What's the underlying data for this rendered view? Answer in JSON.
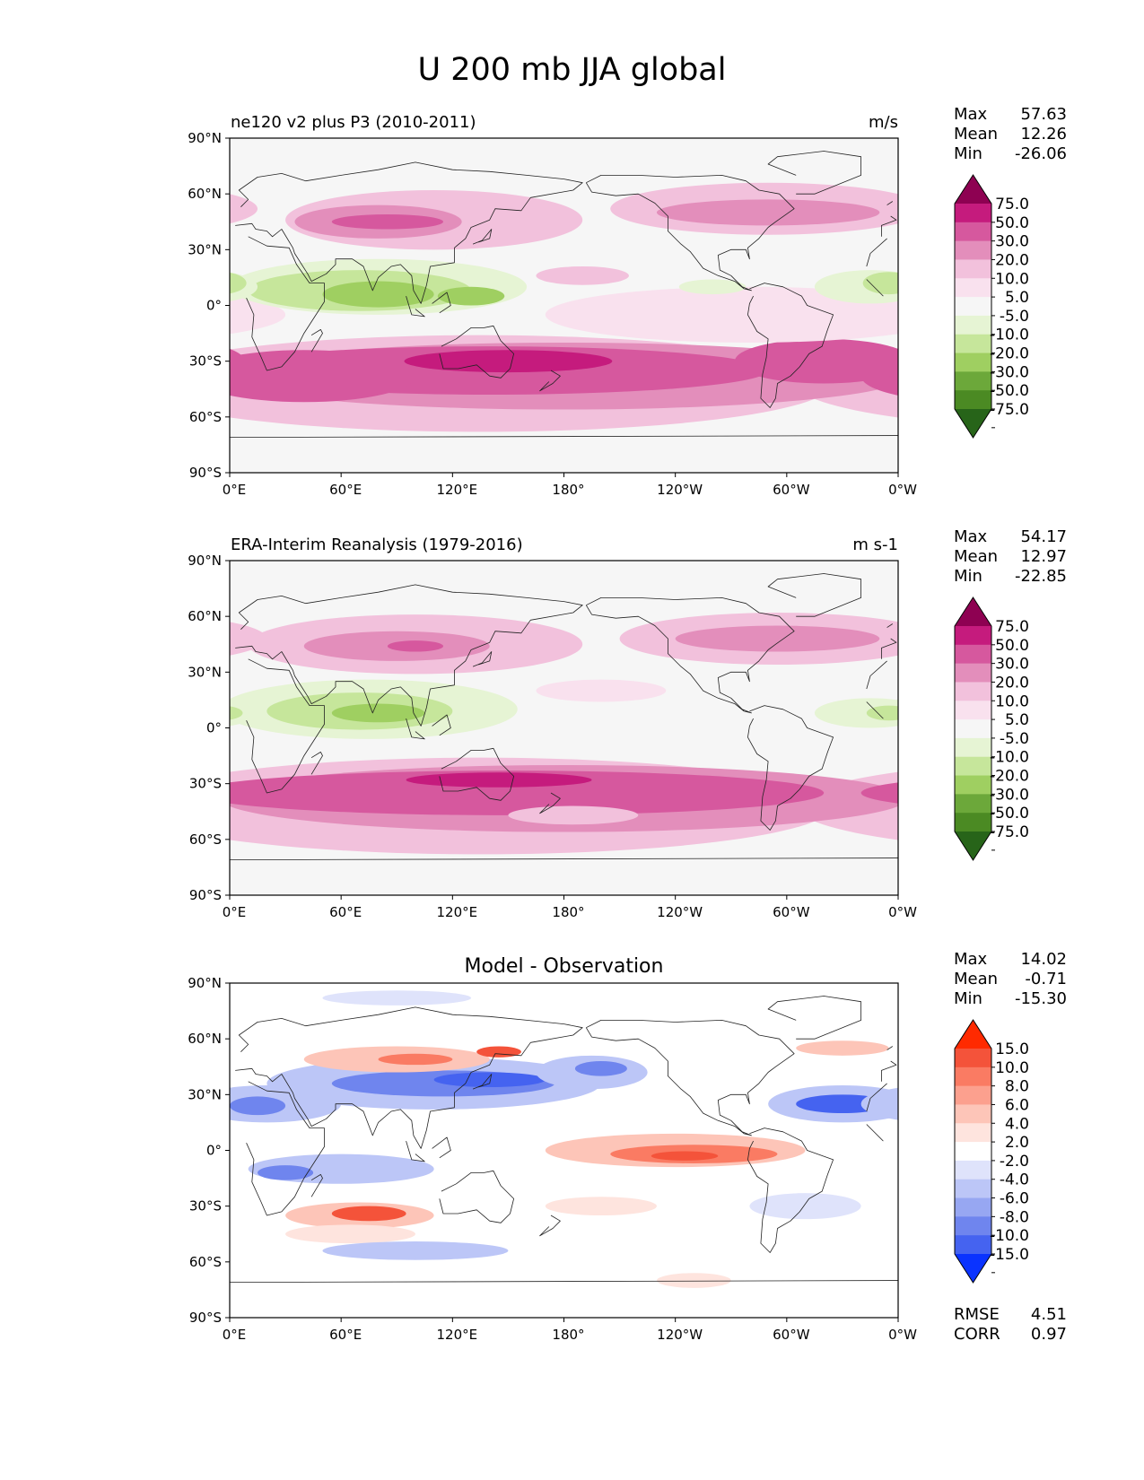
{
  "figure": {
    "title": "U 200 mb JJA global"
  },
  "lat_ticks": [
    "90°N",
    "60°N",
    "30°N",
    "0°",
    "30°S",
    "60°S",
    "90°S"
  ],
  "lon_ticks": [
    "0°E",
    "60°E",
    "120°E",
    "180°",
    "120°W",
    "60°W",
    "0°W"
  ],
  "panels": [
    {
      "title_left": "ne120 v2 plus P3 (2010-2011)",
      "title_center": "",
      "units": "m/s",
      "stats": [
        {
          "label": "Max",
          "value": "57.63"
        },
        {
          "label": "Mean",
          "value": "12.26"
        },
        {
          "label": "Min",
          "value": "-26.06"
        }
      ],
      "colorbar": {
        "levels": [
          "75.0",
          "50.0",
          "30.0",
          "20.0",
          "10.0",
          "5.0",
          "-5.0",
          "-10.0",
          "-20.0",
          "-30.0",
          "-50.0",
          "-75.0"
        ],
        "colors": [
          "#8e0152",
          "#c51b7d",
          "#d6589e",
          "#e38ebb",
          "#f2c1dc",
          "#f9e1ee",
          "#f6f6f6",
          "#e6f4d4",
          "#c6e69b",
          "#9fcf61",
          "#6ca83a",
          "#4b8a23",
          "#276419"
        ]
      },
      "footer": []
    },
    {
      "title_left": "ERA-Interim Reanalysis (1979-2016)",
      "title_center": "",
      "units": "m s-1",
      "stats": [
        {
          "label": "Max",
          "value": "54.17"
        },
        {
          "label": "Mean",
          "value": "12.97"
        },
        {
          "label": "Min",
          "value": "-22.85"
        }
      ],
      "colorbar": {
        "levels": [
          "75.0",
          "50.0",
          "30.0",
          "20.0",
          "10.0",
          "5.0",
          "-5.0",
          "-10.0",
          "-20.0",
          "-30.0",
          "-50.0",
          "-75.0"
        ],
        "colors": [
          "#8e0152",
          "#c51b7d",
          "#d6589e",
          "#e38ebb",
          "#f2c1dc",
          "#f9e1ee",
          "#f6f6f6",
          "#e6f4d4",
          "#c6e69b",
          "#9fcf61",
          "#6ca83a",
          "#4b8a23",
          "#276419"
        ]
      },
      "footer": []
    },
    {
      "title_left": "",
      "title_center": "Model - Observation",
      "units": "",
      "stats": [
        {
          "label": "Max",
          "value": "14.02"
        },
        {
          "label": "Mean",
          "value": "-0.71"
        },
        {
          "label": "Min",
          "value": "-15.30"
        }
      ],
      "colorbar": {
        "levels": [
          "15.0",
          "10.0",
          "8.0",
          "6.0",
          "4.0",
          "2.0",
          "-2.0",
          "-4.0",
          "-6.0",
          "-8.0",
          "-10.0",
          "-15.0"
        ],
        "colors": [
          "#ff2a00",
          "#f4533a",
          "#fa7b63",
          "#fca08e",
          "#fdc5b8",
          "#fee4de",
          "#ffffff",
          "#dfe3fb",
          "#bcc6f7",
          "#97a7f2",
          "#6f85ee",
          "#4563f0",
          "#0a33ff"
        ]
      },
      "footer": [
        {
          "label": "RMSE",
          "value": "4.51"
        },
        {
          "label": "CORR",
          "value": "0.97"
        }
      ]
    }
  ]
}
